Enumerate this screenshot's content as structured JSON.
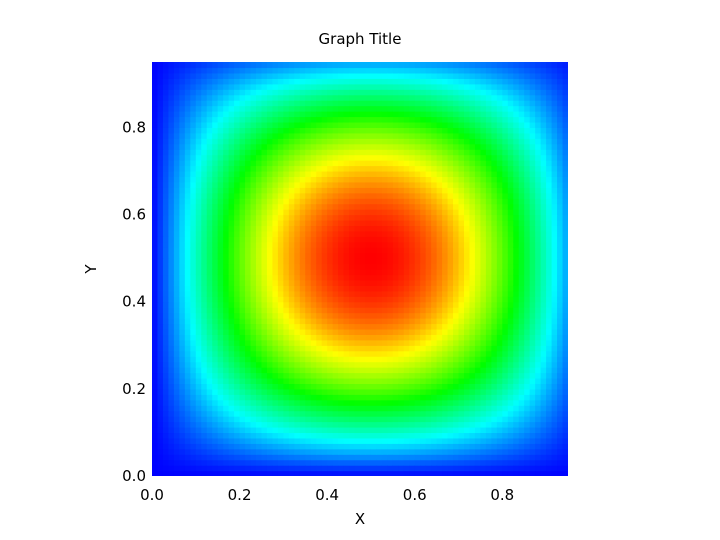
{
  "chart_data": {
    "type": "heatmap",
    "title": "Graph Title",
    "xlabel": "X",
    "ylabel": "Y",
    "xlim": [
      0.0,
      0.95
    ],
    "ylim": [
      0.0,
      0.95
    ],
    "x_ticks": [
      0.0,
      0.2,
      0.4,
      0.6,
      0.8
    ],
    "y_ticks": [
      0.0,
      0.2,
      0.4,
      0.6,
      0.8
    ],
    "x_tick_labels": [
      "0.0",
      "0.2",
      "0.4",
      "0.6",
      "0.8"
    ],
    "y_tick_labels": [
      "0.0",
      "0.2",
      "0.4",
      "0.6",
      "0.8"
    ],
    "grid_spacing": 0.05,
    "function": "sin(pi*x)*sin(pi*y)",
    "z_range": [
      0.0,
      1.0
    ],
    "peak": {
      "x": 0.5,
      "y": 0.5,
      "z": 1.0
    },
    "colormap": "rainbow",
    "colormap_stops": [
      "#0000ff",
      "#00ffff",
      "#00ff00",
      "#ffff00",
      "#ff0000"
    ],
    "grid": false,
    "legend": "none"
  }
}
